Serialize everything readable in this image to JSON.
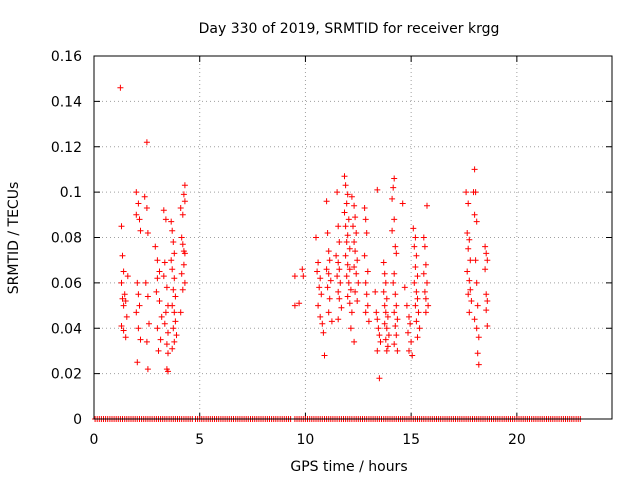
{
  "chart_data": {
    "type": "scatter",
    "title": "Day 330 of 2019, SRMTID for receiver krgg",
    "xlabel": "GPS time / hours",
    "ylabel": "SRMTID / TECUs",
    "xlim": [
      0,
      24.5
    ],
    "ylim": [
      0,
      0.16
    ],
    "xticks": [
      "0",
      "5",
      "10",
      "15",
      "20"
    ],
    "yticks": [
      "0",
      "0.02",
      "0.04",
      "0.06",
      "0.08",
      "0.1",
      "0.12",
      "0.14",
      "0.16"
    ],
    "grid": true,
    "marker": "+",
    "color": "#ff0000",
    "series": [
      {
        "name": "SRMTID",
        "points": [
          [
            1.25,
            0.146
          ],
          [
            2.5,
            0.122
          ],
          [
            1.3,
            0.085
          ],
          [
            1.35,
            0.072
          ],
          [
            1.4,
            0.065
          ],
          [
            1.3,
            0.06
          ],
          [
            1.45,
            0.055
          ],
          [
            1.35,
            0.053
          ],
          [
            1.4,
            0.05
          ],
          [
            1.5,
            0.052
          ],
          [
            1.3,
            0.041
          ],
          [
            1.4,
            0.039
          ],
          [
            1.5,
            0.036
          ],
          [
            1.6,
            0.063
          ],
          [
            1.55,
            0.045
          ],
          [
            2.0,
            0.1
          ],
          [
            2.1,
            0.095
          ],
          [
            2.0,
            0.09
          ],
          [
            2.15,
            0.088
          ],
          [
            2.2,
            0.083
          ],
          [
            2.05,
            0.06
          ],
          [
            2.1,
            0.055
          ],
          [
            2.15,
            0.05
          ],
          [
            2.0,
            0.047
          ],
          [
            2.1,
            0.04
          ],
          [
            2.2,
            0.035
          ],
          [
            2.05,
            0.025
          ],
          [
            2.4,
            0.098
          ],
          [
            2.5,
            0.093
          ],
          [
            2.55,
            0.082
          ],
          [
            2.45,
            0.06
          ],
          [
            2.55,
            0.054
          ],
          [
            2.6,
            0.042
          ],
          [
            2.5,
            0.034
          ],
          [
            2.55,
            0.022
          ],
          [
            2.9,
            0.076
          ],
          [
            3.0,
            0.07
          ],
          [
            3.1,
            0.065
          ],
          [
            3.0,
            0.062
          ],
          [
            2.95,
            0.056
          ],
          [
            3.1,
            0.052
          ],
          [
            3.2,
            0.045
          ],
          [
            3.0,
            0.04
          ],
          [
            3.15,
            0.035
          ],
          [
            3.05,
            0.03
          ],
          [
            3.3,
            0.092
          ],
          [
            3.4,
            0.088
          ],
          [
            3.35,
            0.069
          ],
          [
            3.3,
            0.063
          ],
          [
            3.45,
            0.058
          ],
          [
            3.5,
            0.05
          ],
          [
            3.4,
            0.047
          ],
          [
            3.35,
            0.042
          ],
          [
            3.5,
            0.038
          ],
          [
            3.45,
            0.033
          ],
          [
            3.5,
            0.029
          ],
          [
            3.45,
            0.022
          ],
          [
            3.5,
            0.021
          ],
          [
            3.65,
            0.087
          ],
          [
            3.7,
            0.083
          ],
          [
            3.75,
            0.078
          ],
          [
            3.8,
            0.073
          ],
          [
            3.65,
            0.07
          ],
          [
            3.7,
            0.066
          ],
          [
            3.8,
            0.062
          ],
          [
            3.75,
            0.057
          ],
          [
            3.85,
            0.054
          ],
          [
            3.7,
            0.05
          ],
          [
            3.8,
            0.047
          ],
          [
            3.85,
            0.043
          ],
          [
            3.75,
            0.04
          ],
          [
            3.9,
            0.037
          ],
          [
            3.8,
            0.034
          ],
          [
            3.7,
            0.031
          ],
          [
            4.1,
            0.093
          ],
          [
            4.2,
            0.09
          ],
          [
            4.3,
            0.103
          ],
          [
            4.25,
            0.099
          ],
          [
            4.3,
            0.096
          ],
          [
            4.15,
            0.08
          ],
          [
            4.2,
            0.077
          ],
          [
            4.3,
            0.073
          ],
          [
            4.25,
            0.068
          ],
          [
            4.15,
            0.064
          ],
          [
            4.3,
            0.06
          ],
          [
            4.2,
            0.057
          ],
          [
            4.1,
            0.047
          ],
          [
            4.25,
            0.074
          ],
          [
            9.5,
            0.063
          ],
          [
            9.5,
            0.05
          ],
          [
            9.7,
            0.051
          ],
          [
            9.85,
            0.066
          ],
          [
            9.9,
            0.063
          ],
          [
            10.5,
            0.08
          ],
          [
            10.6,
            0.069
          ],
          [
            10.55,
            0.065
          ],
          [
            10.7,
            0.062
          ],
          [
            10.65,
            0.058
          ],
          [
            10.75,
            0.055
          ],
          [
            10.6,
            0.05
          ],
          [
            10.7,
            0.045
          ],
          [
            10.8,
            0.042
          ],
          [
            10.85,
            0.038
          ],
          [
            10.9,
            0.028
          ],
          [
            11.0,
            0.096
          ],
          [
            11.05,
            0.082
          ],
          [
            11.1,
            0.074
          ],
          [
            11.15,
            0.07
          ],
          [
            11.0,
            0.066
          ],
          [
            11.1,
            0.064
          ],
          [
            11.2,
            0.061
          ],
          [
            11.05,
            0.058
          ],
          [
            11.15,
            0.053
          ],
          [
            11.1,
            0.047
          ],
          [
            11.25,
            0.043
          ],
          [
            11.5,
            0.1
          ],
          [
            11.55,
            0.085
          ],
          [
            11.6,
            0.078
          ],
          [
            11.45,
            0.072
          ],
          [
            11.55,
            0.069
          ],
          [
            11.6,
            0.066
          ],
          [
            11.5,
            0.063
          ],
          [
            11.65,
            0.06
          ],
          [
            11.55,
            0.056
          ],
          [
            11.6,
            0.053
          ],
          [
            11.7,
            0.049
          ],
          [
            11.55,
            0.044
          ],
          [
            11.85,
            0.107
          ],
          [
            11.9,
            0.103
          ],
          [
            12.0,
            0.099
          ],
          [
            11.95,
            0.095
          ],
          [
            11.85,
            0.091
          ],
          [
            12.05,
            0.088
          ],
          [
            11.9,
            0.085
          ],
          [
            12.0,
            0.081
          ],
          [
            11.95,
            0.078
          ],
          [
            12.1,
            0.075
          ],
          [
            11.9,
            0.072
          ],
          [
            12.0,
            0.068
          ],
          [
            12.1,
            0.066
          ],
          [
            11.95,
            0.063
          ],
          [
            12.05,
            0.06
          ],
          [
            12.15,
            0.057
          ],
          [
            12.0,
            0.054
          ],
          [
            12.1,
            0.051
          ],
          [
            12.2,
            0.047
          ],
          [
            12.15,
            0.04
          ],
          [
            12.3,
            0.034
          ],
          [
            12.2,
            0.098
          ],
          [
            12.3,
            0.094
          ],
          [
            12.35,
            0.089
          ],
          [
            12.25,
            0.085
          ],
          [
            12.4,
            0.082
          ],
          [
            12.3,
            0.078
          ],
          [
            12.35,
            0.074
          ],
          [
            12.45,
            0.07
          ],
          [
            12.3,
            0.067
          ],
          [
            12.4,
            0.064
          ],
          [
            12.5,
            0.06
          ],
          [
            12.35,
            0.056
          ],
          [
            12.45,
            0.052
          ],
          [
            12.8,
            0.093
          ],
          [
            12.85,
            0.088
          ],
          [
            12.9,
            0.082
          ],
          [
            12.8,
            0.072
          ],
          [
            12.95,
            0.065
          ],
          [
            12.85,
            0.06
          ],
          [
            12.9,
            0.055
          ],
          [
            12.95,
            0.05
          ],
          [
            12.85,
            0.047
          ],
          [
            13.0,
            0.043
          ],
          [
            13.4,
            0.101
          ],
          [
            13.3,
            0.056
          ],
          [
            13.35,
            0.047
          ],
          [
            13.4,
            0.044
          ],
          [
            13.45,
            0.04
          ],
          [
            13.5,
            0.037
          ],
          [
            13.55,
            0.034
          ],
          [
            13.4,
            0.03
          ],
          [
            13.5,
            0.018
          ],
          [
            13.7,
            0.069
          ],
          [
            13.75,
            0.064
          ],
          [
            13.8,
            0.06
          ],
          [
            13.7,
            0.056
          ],
          [
            13.85,
            0.053
          ],
          [
            13.75,
            0.05
          ],
          [
            13.8,
            0.047
          ],
          [
            13.9,
            0.045
          ],
          [
            13.75,
            0.042
          ],
          [
            13.85,
            0.04
          ],
          [
            13.95,
            0.037
          ],
          [
            13.8,
            0.035
          ],
          [
            13.9,
            0.032
          ],
          [
            13.85,
            0.03
          ],
          [
            14.1,
            0.097
          ],
          [
            14.2,
            0.106
          ],
          [
            14.15,
            0.102
          ],
          [
            14.2,
            0.088
          ],
          [
            14.1,
            0.083
          ],
          [
            14.25,
            0.076
          ],
          [
            14.3,
            0.073
          ],
          [
            14.2,
            0.064
          ],
          [
            14.15,
            0.06
          ],
          [
            14.25,
            0.055
          ],
          [
            14.3,
            0.05
          ],
          [
            14.2,
            0.047
          ],
          [
            14.35,
            0.044
          ],
          [
            14.25,
            0.041
          ],
          [
            14.3,
            0.037
          ],
          [
            14.2,
            0.033
          ],
          [
            14.35,
            0.03
          ],
          [
            14.6,
            0.095
          ],
          [
            14.7,
            0.058
          ],
          [
            14.8,
            0.05
          ],
          [
            14.9,
            0.045
          ],
          [
            14.95,
            0.042
          ],
          [
            14.85,
            0.038
          ],
          [
            15.0,
            0.034
          ],
          [
            14.9,
            0.03
          ],
          [
            15.05,
            0.028
          ],
          [
            15.1,
            0.084
          ],
          [
            15.2,
            0.08
          ],
          [
            15.15,
            0.076
          ],
          [
            15.25,
            0.072
          ],
          [
            15.2,
            0.067
          ],
          [
            15.3,
            0.063
          ],
          [
            15.15,
            0.06
          ],
          [
            15.25,
            0.056
          ],
          [
            15.3,
            0.053
          ],
          [
            15.2,
            0.05
          ],
          [
            15.35,
            0.047
          ],
          [
            15.25,
            0.043
          ],
          [
            15.4,
            0.04
          ],
          [
            15.3,
            0.036
          ],
          [
            15.6,
            0.08
          ],
          [
            15.65,
            0.076
          ],
          [
            15.7,
            0.068
          ],
          [
            15.6,
            0.064
          ],
          [
            15.75,
            0.06
          ],
          [
            15.65,
            0.056
          ],
          [
            15.7,
            0.053
          ],
          [
            15.8,
            0.05
          ],
          [
            15.7,
            0.047
          ],
          [
            15.75,
            0.094
          ],
          [
            17.6,
            0.1
          ],
          [
            17.7,
            0.095
          ],
          [
            17.65,
            0.082
          ],
          [
            17.75,
            0.079
          ],
          [
            17.7,
            0.075
          ],
          [
            17.8,
            0.07
          ],
          [
            17.65,
            0.065
          ],
          [
            17.75,
            0.061
          ],
          [
            17.8,
            0.057
          ],
          [
            17.7,
            0.055
          ],
          [
            17.85,
            0.052
          ],
          [
            17.75,
            0.047
          ],
          [
            18.0,
            0.11
          ],
          [
            17.95,
            0.1
          ],
          [
            18.05,
            0.1
          ],
          [
            18.0,
            0.09
          ],
          [
            18.1,
            0.087
          ],
          [
            18.05,
            0.07
          ],
          [
            18.1,
            0.06
          ],
          [
            18.15,
            0.05
          ],
          [
            18.0,
            0.044
          ],
          [
            18.1,
            0.04
          ],
          [
            18.2,
            0.036
          ],
          [
            18.15,
            0.029
          ],
          [
            18.2,
            0.024
          ],
          [
            18.5,
            0.076
          ],
          [
            18.55,
            0.073
          ],
          [
            18.6,
            0.07
          ],
          [
            18.5,
            0.066
          ],
          [
            18.55,
            0.055
          ],
          [
            18.6,
            0.052
          ],
          [
            18.55,
            0.048
          ],
          [
            18.6,
            0.041
          ]
        ]
      }
    ],
    "baseline_zero_range": [
      [
        0.05,
        4.7
      ],
      [
        4.8,
        9.3
      ],
      [
        9.5,
        23.0
      ]
    ]
  }
}
